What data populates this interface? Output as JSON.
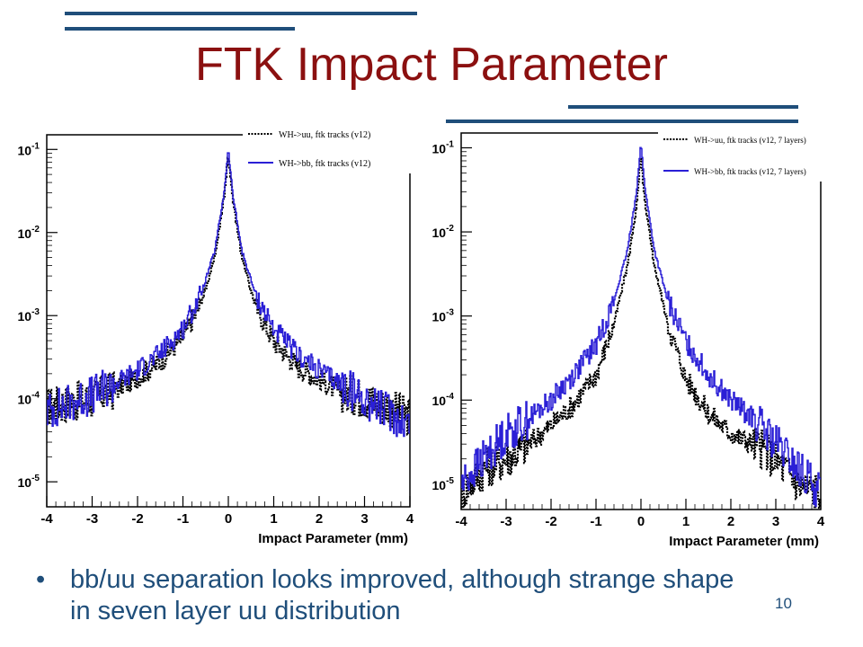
{
  "slide": {
    "title": "FTK Impact Parameter",
    "bullet": "bb/uu separation looks improved, although strange shape in seven layer uu distribution",
    "page_number": "10",
    "accent": "#1f4e7a",
    "title_color": "#8b1010"
  },
  "chart_data": [
    {
      "type": "line",
      "xlabel": "Impact Parameter (mm)",
      "ylabel": "",
      "xlim": [
        -4,
        4
      ],
      "ylim": [
        5e-06,
        0.15
      ],
      "yscale": "log",
      "x_ticks": [
        "-4",
        "-3",
        "-2",
        "-1",
        "0",
        "1",
        "2",
        "3",
        "4"
      ],
      "y_ticks": [
        {
          "base": "10",
          "exp": "-1",
          "value": 0.1
        },
        {
          "base": "10",
          "exp": "-2",
          "value": 0.01
        },
        {
          "base": "10",
          "exp": "-3",
          "value": 0.001
        },
        {
          "base": "10",
          "exp": "-4",
          "value": 0.0001
        },
        {
          "base": "10",
          "exp": "-5",
          "value": 1e-05
        }
      ],
      "legend_position": "top-right",
      "series": [
        {
          "name": "WH->uu, ftk tracks (v12)",
          "color": "#000000",
          "style": "dotted",
          "x": [
            -4,
            -3.5,
            -3,
            -2.5,
            -2,
            -1.5,
            -1,
            -0.6,
            -0.3,
            -0.1,
            0,
            0.1,
            0.3,
            0.6,
            1,
            1.5,
            2,
            2.5,
            3,
            3.5,
            4
          ],
          "y": [
            8e-05,
            9e-05,
            0.0001,
            0.00013,
            0.00018,
            0.00028,
            0.00055,
            0.0014,
            0.005,
            0.025,
            0.09,
            0.025,
            0.005,
            0.0013,
            0.0005,
            0.00025,
            0.00017,
            0.00012,
            0.0001,
            8e-05,
            6e-05
          ]
        },
        {
          "name": "WH->bb, ftk tracks (v12)",
          "color": "#2a1fd6",
          "style": "solid",
          "x": [
            -4,
            -3.5,
            -3,
            -2.5,
            -2,
            -1.5,
            -1,
            -0.6,
            -0.3,
            -0.1,
            0,
            0.1,
            0.3,
            0.6,
            1,
            1.5,
            2,
            2.5,
            3,
            3.5,
            4
          ],
          "y": [
            7e-05,
            9e-05,
            0.00011,
            0.00015,
            0.00022,
            0.00035,
            0.0007,
            0.0018,
            0.006,
            0.028,
            0.1,
            0.028,
            0.006,
            0.0018,
            0.0007,
            0.00035,
            0.00022,
            0.00015,
            0.0001,
            7e-05,
            5e-05
          ]
        }
      ]
    },
    {
      "type": "line",
      "xlabel": "Impact Parameter (mm)",
      "ylabel": "",
      "xlim": [
        -4,
        4
      ],
      "ylim": [
        5e-06,
        0.15
      ],
      "yscale": "log",
      "x_ticks": [
        "-4",
        "-3",
        "-2",
        "-1",
        "0",
        "1",
        "2",
        "3",
        "4"
      ],
      "y_ticks": [
        {
          "base": "10",
          "exp": "-1",
          "value": 0.1
        },
        {
          "base": "10",
          "exp": "-2",
          "value": 0.01
        },
        {
          "base": "10",
          "exp": "-3",
          "value": 0.001
        },
        {
          "base": "10",
          "exp": "-4",
          "value": 0.0001
        },
        {
          "base": "10",
          "exp": "-5",
          "value": 1e-05
        }
      ],
      "legend_position": "top-right",
      "series": [
        {
          "name": "WH->uu, ftk tracks (v12, 7 layers)",
          "color": "#000000",
          "style": "dotted",
          "x": [
            -4,
            -3.5,
            -3,
            -2.5,
            -2,
            -1.5,
            -1,
            -0.6,
            -0.3,
            -0.1,
            0,
            0.1,
            0.3,
            0.6,
            1,
            1.5,
            2,
            2.5,
            3,
            3.5,
            4
          ],
          "y": [
            8e-06,
            1.5e-05,
            2e-05,
            3e-05,
            5e-05,
            9e-05,
            0.0002,
            0.0008,
            0.004,
            0.02,
            0.08,
            0.02,
            0.004,
            0.0008,
            0.00018,
            7e-05,
            4e-05,
            3e-05,
            2e-05,
            1e-05,
            8e-06
          ]
        },
        {
          "name": "WH->bb, ftk tracks (v12, 7 layers)",
          "color": "#2a1fd6",
          "style": "solid",
          "x": [
            -4,
            -3.5,
            -3,
            -2.5,
            -2,
            -1.5,
            -1,
            -0.6,
            -0.3,
            -0.1,
            0,
            0.1,
            0.3,
            0.6,
            1,
            1.5,
            2,
            2.5,
            3,
            3.5,
            4
          ],
          "y": [
            1e-05,
            2e-05,
            4e-05,
            6e-05,
            0.0001,
            0.0002,
            0.00045,
            0.0015,
            0.006,
            0.03,
            0.11,
            0.03,
            0.006,
            0.0015,
            0.0005,
            0.0002,
            0.0001,
            6e-05,
            3e-05,
            1.5e-05,
            8e-06
          ]
        }
      ]
    }
  ]
}
